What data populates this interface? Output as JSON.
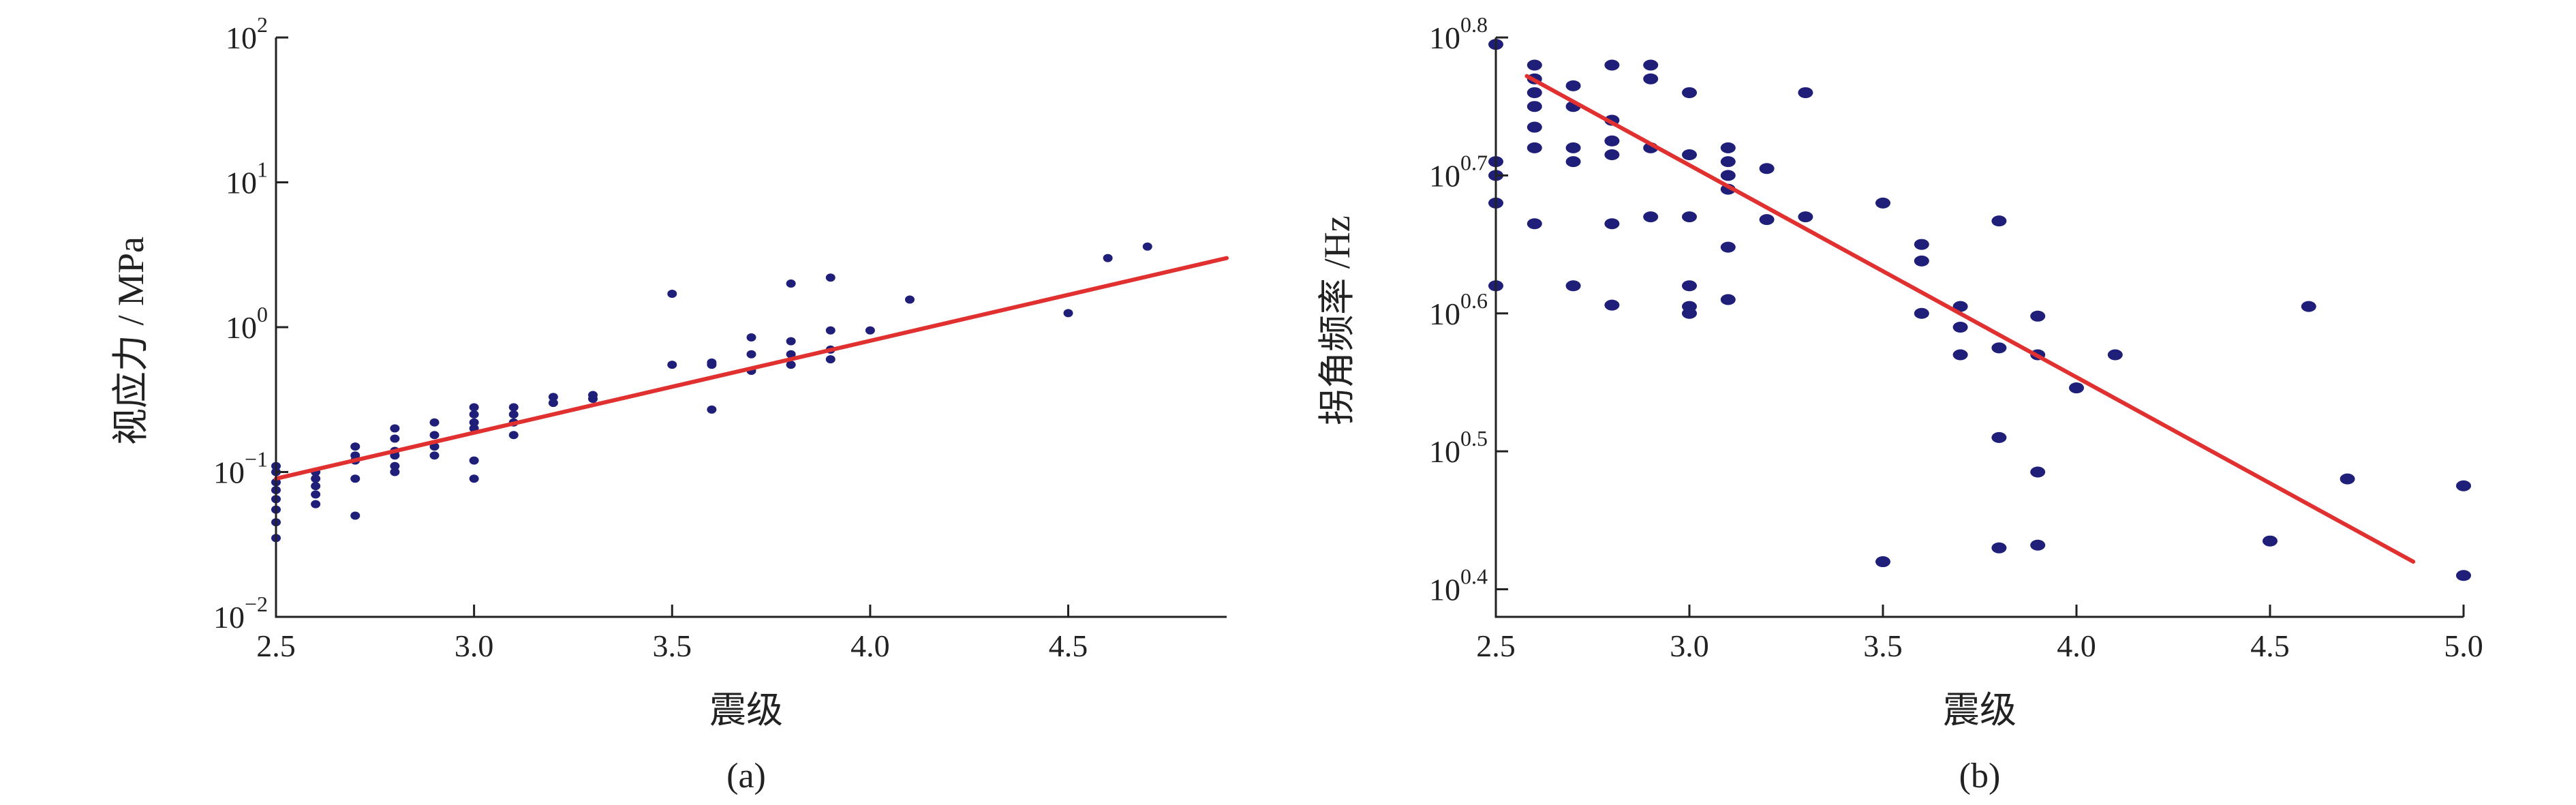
{
  "colors": {
    "points": "#1f1f7a",
    "fit": "#e03030",
    "axis": "#222222"
  },
  "chart_data": [
    {
      "type": "scatter",
      "panel_label": "(a)",
      "xlabel": "震级",
      "ylabel": "视应力 / MPa",
      "xlim": [
        2.5,
        4.9
      ],
      "ylim": [
        0.01,
        100
      ],
      "yscale": "log",
      "xticks": [
        "2.5",
        "3.0",
        "3.5",
        "4.0",
        "4.5"
      ],
      "yticks": [
        {
          "value": 0.01,
          "base": "10",
          "exp": "−2"
        },
        {
          "value": 0.1,
          "base": "10",
          "exp": "−1"
        },
        {
          "value": 1,
          "base": "10",
          "exp": "0"
        },
        {
          "value": 10,
          "base": "10",
          "exp": "1"
        },
        {
          "value": 100,
          "base": "10",
          "exp": "2"
        }
      ],
      "points": [
        [
          2.5,
          0.035
        ],
        [
          2.5,
          0.045
        ],
        [
          2.5,
          0.055
        ],
        [
          2.5,
          0.065
        ],
        [
          2.5,
          0.075
        ],
        [
          2.5,
          0.085
        ],
        [
          2.5,
          0.1
        ],
        [
          2.5,
          0.11
        ],
        [
          2.6,
          0.06
        ],
        [
          2.6,
          0.07
        ],
        [
          2.6,
          0.08
        ],
        [
          2.6,
          0.09
        ],
        [
          2.6,
          0.1
        ],
        [
          2.7,
          0.05
        ],
        [
          2.7,
          0.09
        ],
        [
          2.7,
          0.12
        ],
        [
          2.7,
          0.13
        ],
        [
          2.7,
          0.15
        ],
        [
          2.8,
          0.1
        ],
        [
          2.8,
          0.11
        ],
        [
          2.8,
          0.13
        ],
        [
          2.8,
          0.14
        ],
        [
          2.8,
          0.17
        ],
        [
          2.8,
          0.2
        ],
        [
          2.9,
          0.13
        ],
        [
          2.9,
          0.15
        ],
        [
          2.9,
          0.18
        ],
        [
          2.9,
          0.22
        ],
        [
          3.0,
          0.09
        ],
        [
          3.0,
          0.12
        ],
        [
          3.0,
          0.2
        ],
        [
          3.0,
          0.22
        ],
        [
          3.0,
          0.25
        ],
        [
          3.0,
          0.28
        ],
        [
          3.1,
          0.18
        ],
        [
          3.1,
          0.22
        ],
        [
          3.1,
          0.25
        ],
        [
          3.1,
          0.28
        ],
        [
          3.2,
          0.3
        ],
        [
          3.2,
          0.33
        ],
        [
          3.3,
          0.32
        ],
        [
          3.3,
          0.34
        ],
        [
          3.5,
          0.55
        ],
        [
          3.5,
          1.7
        ],
        [
          3.6,
          0.27
        ],
        [
          3.6,
          0.55
        ],
        [
          3.6,
          0.57
        ],
        [
          3.7,
          0.5
        ],
        [
          3.7,
          0.65
        ],
        [
          3.7,
          0.85
        ],
        [
          3.8,
          0.55
        ],
        [
          3.8,
          0.65
        ],
        [
          3.8,
          0.8
        ],
        [
          3.8,
          2.0
        ],
        [
          3.9,
          0.6
        ],
        [
          3.9,
          0.7
        ],
        [
          3.9,
          0.95
        ],
        [
          3.9,
          2.2
        ],
        [
          4.0,
          0.95
        ],
        [
          4.1,
          1.55
        ],
        [
          4.5,
          1.25
        ],
        [
          4.6,
          3.0
        ],
        [
          4.7,
          3.6
        ]
      ],
      "fit_line": [
        [
          2.5,
          0.09
        ],
        [
          4.9,
          3.0
        ]
      ]
    },
    {
      "type": "scatter",
      "panel_label": "(b)",
      "xlabel": "震级",
      "ylabel": "拐角频率 /Hz",
      "xlim": [
        2.5,
        5.0
      ],
      "ylim": [
        0.38,
        0.8
      ],
      "yscale": "log",
      "xticks": [
        "2.5",
        "3.0",
        "3.5",
        "4.0",
        "4.5",
        "5.0"
      ],
      "yticks": [
        {
          "value": 0.4,
          "base": "10",
          "exp": "0.4"
        },
        {
          "value": 0.5,
          "base": "10",
          "exp": "0.5"
        },
        {
          "value": 0.6,
          "base": "10",
          "exp": "0.6"
        },
        {
          "value": 0.7,
          "base": "10",
          "exp": "0.7"
        },
        {
          "value": 0.8,
          "base": "10",
          "exp": "0.8"
        }
      ],
      "points": [
        [
          2.5,
          0.795
        ],
        [
          2.5,
          0.71
        ],
        [
          2.5,
          0.7
        ],
        [
          2.5,
          0.68
        ],
        [
          2.5,
          0.62
        ],
        [
          2.6,
          0.78
        ],
        [
          2.6,
          0.77
        ],
        [
          2.6,
          0.76
        ],
        [
          2.6,
          0.75
        ],
        [
          2.6,
          0.735
        ],
        [
          2.6,
          0.72
        ],
        [
          2.6,
          0.665
        ],
        [
          2.7,
          0.765
        ],
        [
          2.7,
          0.75
        ],
        [
          2.7,
          0.72
        ],
        [
          2.7,
          0.71
        ],
        [
          2.7,
          0.62
        ],
        [
          2.8,
          0.78
        ],
        [
          2.8,
          0.74
        ],
        [
          2.8,
          0.725
        ],
        [
          2.8,
          0.715
        ],
        [
          2.8,
          0.665
        ],
        [
          2.8,
          0.606
        ],
        [
          2.9,
          0.78
        ],
        [
          2.9,
          0.77
        ],
        [
          2.9,
          0.72
        ],
        [
          2.9,
          0.67
        ],
        [
          3.0,
          0.76
        ],
        [
          3.0,
          0.715
        ],
        [
          3.0,
          0.67
        ],
        [
          3.0,
          0.62
        ],
        [
          3.0,
          0.605
        ],
        [
          3.0,
          0.6
        ],
        [
          3.1,
          0.72
        ],
        [
          3.1,
          0.71
        ],
        [
          3.1,
          0.7
        ],
        [
          3.1,
          0.69
        ],
        [
          3.1,
          0.648
        ],
        [
          3.1,
          0.61
        ],
        [
          3.2,
          0.705
        ],
        [
          3.2,
          0.668
        ],
        [
          3.3,
          0.76
        ],
        [
          3.3,
          0.67
        ],
        [
          3.5,
          0.68
        ],
        [
          3.5,
          0.42
        ],
        [
          3.6,
          0.65
        ],
        [
          3.6,
          0.638
        ],
        [
          3.6,
          0.6
        ],
        [
          3.7,
          0.605
        ],
        [
          3.7,
          0.59
        ],
        [
          3.7,
          0.57
        ],
        [
          3.8,
          0.667
        ],
        [
          3.8,
          0.575
        ],
        [
          3.8,
          0.51
        ],
        [
          3.8,
          0.43
        ],
        [
          3.9,
          0.598
        ],
        [
          3.9,
          0.57
        ],
        [
          3.9,
          0.485
        ],
        [
          3.9,
          0.432
        ],
        [
          4.0,
          0.546
        ],
        [
          4.1,
          0.57
        ],
        [
          4.5,
          0.435
        ],
        [
          4.6,
          0.605
        ],
        [
          4.7,
          0.48
        ],
        [
          5.0,
          0.475
        ],
        [
          5.0,
          0.41
        ]
      ],
      "fit_line": [
        [
          2.58,
          0.772
        ],
        [
          4.87,
          0.42
        ]
      ]
    }
  ]
}
